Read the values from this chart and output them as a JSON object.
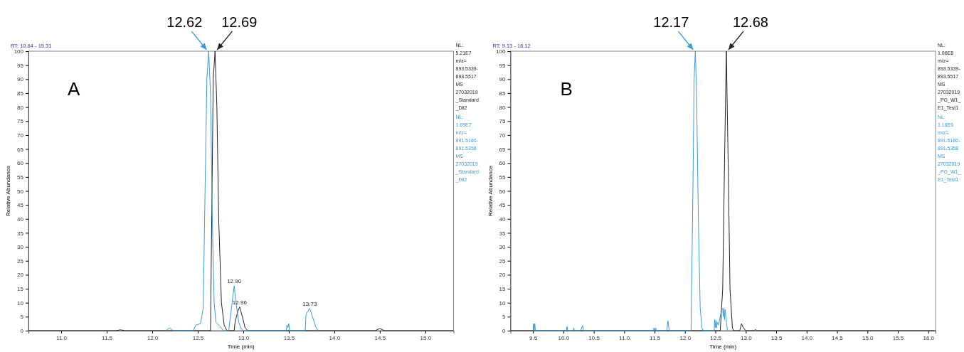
{
  "chart_data": [
    {
      "type": "line",
      "title": "A",
      "subtitle": "RT: 10.64 - 15.31",
      "xlabel": "Time (min)",
      "ylabel": "Relative Abundance",
      "grid": false,
      "marker": "none",
      "line_style": "solid",
      "xlim": [
        10.64,
        15.31
      ],
      "ylim": [
        0,
        100
      ],
      "xticks": [
        {
          "value": 11,
          "label": "11.0"
        },
        11.5,
        {
          "value": 12,
          "label": "12.0"
        },
        12.5,
        {
          "value": 13,
          "label": "13.0"
        },
        13.5,
        {
          "value": 14,
          "label": "14.0"
        },
        14.5,
        {
          "value": 15,
          "label": "15.0"
        }
      ],
      "yticks": [
        0,
        5,
        10,
        15,
        20,
        25,
        30,
        35,
        40,
        45,
        50,
        55,
        60,
        65,
        70,
        75,
        80,
        85,
        90,
        95,
        100
      ],
      "series": [
        {
          "name": "NL: 5.21E7 m/z= 893.5339-893.5517 MS 27032019_Standard_Dil2",
          "color": "#222222",
          "x": [
            10.64,
            11.6,
            11.65,
            11.7,
            12.64,
            12.65,
            12.67,
            12.69,
            12.71,
            12.73,
            12.76,
            12.79,
            12.82,
            12.9,
            12.91,
            12.94,
            12.96,
            12.99,
            13.02,
            13.05,
            14.45,
            14.5,
            14.55,
            15.31
          ],
          "values": [
            0,
            0,
            0.3,
            0,
            0,
            30,
            90,
            100,
            80,
            40,
            10,
            2,
            0,
            0,
            3,
            7,
            8.5,
            5,
            1,
            0,
            0,
            0.8,
            0,
            0
          ]
        },
        {
          "name": "NL: 1.69E7 m/z= 891.5180-891.5358 MS 27032019_Standard_Dil2",
          "color": "#3a9ad9",
          "x": [
            12.15,
            12.19,
            12.23,
            12.45,
            12.48,
            12.53,
            12.56,
            12.58,
            12.6,
            12.62,
            12.64,
            12.66,
            12.68,
            12.7,
            12.73,
            12.76,
            12.78,
            12.84,
            12.87,
            12.9,
            12.92,
            12.95,
            12.98,
            13.0,
            13.47,
            13.48,
            13.49,
            13.5,
            13.51,
            13.68,
            13.69,
            13.71,
            13.73,
            13.76,
            13.8,
            13.83
          ],
          "values": [
            0,
            1,
            0,
            0,
            2,
            2.5,
            8,
            50,
            90,
            100,
            85,
            40,
            10,
            3,
            2,
            1,
            0,
            0,
            8,
            16,
            10,
            3,
            0.5,
            0,
            0,
            2,
            1,
            2.5,
            0,
            0,
            6,
            7,
            8,
            5,
            1,
            0
          ]
        }
      ],
      "annotations": [
        {
          "text": "12.62",
          "x": 12.62,
          "y": 100
        },
        {
          "text": "12.69",
          "x": 12.69,
          "y": 100
        },
        {
          "text": "12.90",
          "x": 12.9,
          "y": 16
        },
        {
          "text": "12.96",
          "x": 12.96,
          "y": 8.5
        },
        {
          "text": "13.73",
          "x": 13.73,
          "y": 8
        }
      ]
    },
    {
      "type": "line",
      "title": "B",
      "subtitle": "RT: 9.13 - 16.12",
      "xlabel": "Time (min)",
      "ylabel": "Relative Abundance",
      "grid": false,
      "marker": "none",
      "line_style": "solid",
      "xlim": [
        9.13,
        16.12
      ],
      "ylim": [
        0,
        100
      ],
      "xticks": [
        9.5,
        {
          "value": 10,
          "label": "10.0"
        },
        10.5,
        {
          "value": 11,
          "label": "11.0"
        },
        11.5,
        {
          "value": 12,
          "label": "12.0"
        },
        12.5,
        {
          "value": 13,
          "label": "13.0"
        },
        13.5,
        {
          "value": 14,
          "label": "14.0"
        },
        14.5,
        {
          "value": 15,
          "label": "15.0"
        },
        15.5,
        {
          "value": 16,
          "label": "16.0"
        }
      ],
      "yticks": [
        0,
        5,
        10,
        15,
        20,
        25,
        30,
        35,
        40,
        45,
        50,
        55,
        60,
        65,
        70,
        75,
        80,
        85,
        90,
        95,
        100
      ],
      "series": [
        {
          "name": "NL: 1.06E8 m/z= 893.5339-893.5517 MS 27032019_PG_W1_E1_Test1",
          "color": "#222222",
          "x": [
            9.13,
            12.58,
            12.62,
            12.65,
            12.68,
            12.71,
            12.74,
            12.78,
            12.8,
            12.9,
            12.93,
            12.96,
            13.0,
            13.14,
            13.16,
            13.18,
            16.12
          ],
          "values": [
            0,
            0,
            15,
            60,
            100,
            60,
            15,
            1,
            0,
            0,
            2.5,
            1,
            0,
            0,
            0.4,
            0,
            0
          ]
        },
        {
          "name": "NL: 1.16E6 m/z= 891.5180-891.5358 MS 27032019_PG_W1_E1_Test1",
          "color": "#3a9ad9",
          "x": [
            9.5,
            9.51,
            9.52,
            9.53,
            9.54,
            10.05,
            10.06,
            10.07,
            10.16,
            10.17,
            10.18,
            10.28,
            10.3,
            10.32,
            10.33,
            11.48,
            11.49,
            11.5,
            11.52,
            11.53,
            11.7,
            11.72,
            11.74,
            12.1,
            12.13,
            12.15,
            12.17,
            12.19,
            12.22,
            12.25,
            12.28,
            12.3,
            12.48,
            12.49,
            12.5,
            12.51,
            12.52,
            12.53,
            12.55,
            12.58,
            12.6,
            12.62,
            12.63,
            12.64,
            12.65,
            12.66,
            12.68,
            12.7
          ],
          "values": [
            0,
            2.5,
            0,
            2.5,
            0,
            0,
            1.5,
            0,
            0,
            1,
            0,
            0,
            1,
            1.8,
            0,
            0,
            1,
            0,
            1,
            0,
            0,
            3.5,
            0,
            0,
            50,
            90,
            100,
            85,
            40,
            8,
            1,
            0,
            0,
            4,
            1,
            3.5,
            1,
            3,
            2,
            5,
            7.5,
            8,
            5,
            8,
            4,
            7.5,
            3,
            0
          ]
        }
      ],
      "annotations": [
        {
          "text": "12.17",
          "x": 12.17,
          "y": 100
        },
        {
          "text": "12.68",
          "x": 12.68,
          "y": 100
        }
      ]
    }
  ]
}
